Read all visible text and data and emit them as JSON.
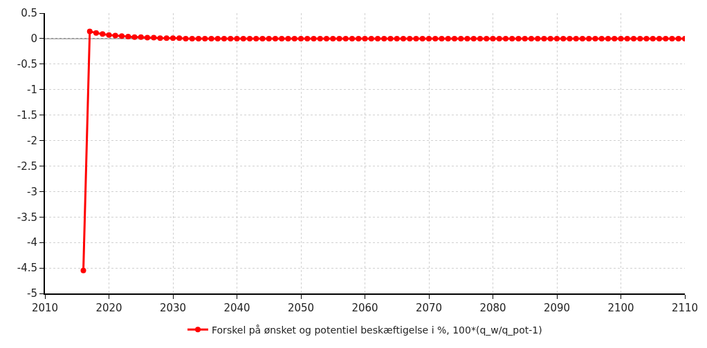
{
  "chart_data": {
    "type": "line",
    "x": [
      2016,
      2017,
      2018,
      2019,
      2020,
      2021,
      2022,
      2023,
      2024,
      2025,
      2026,
      2027,
      2028,
      2029,
      2030,
      2031,
      2032,
      2033,
      2034,
      2035,
      2036,
      2037,
      2038,
      2039,
      2040,
      2041,
      2042,
      2043,
      2044,
      2045,
      2046,
      2047,
      2048,
      2049,
      2050,
      2051,
      2052,
      2053,
      2054,
      2055,
      2056,
      2057,
      2058,
      2059,
      2060,
      2061,
      2062,
      2063,
      2064,
      2065,
      2066,
      2067,
      2068,
      2069,
      2070,
      2071,
      2072,
      2073,
      2074,
      2075,
      2076,
      2077,
      2078,
      2079,
      2080,
      2081,
      2082,
      2083,
      2084,
      2085,
      2086,
      2087,
      2088,
      2089,
      2090,
      2091,
      2092,
      2093,
      2094,
      2095,
      2096,
      2097,
      2098,
      2099,
      2100,
      2101,
      2102,
      2103,
      2104,
      2105,
      2106,
      2107,
      2108,
      2109,
      2110
    ],
    "series": [
      {
        "name": "Forskel på ønsket og potentiel beskæftigelse i %, 100*(q_w/q_pot-1)",
        "color": "#ff0000",
        "values": [
          -4.55,
          0.14,
          0.11,
          0.09,
          0.07,
          0.06,
          0.05,
          0.04,
          0.03,
          0.03,
          0.02,
          0.02,
          0.01,
          0.01,
          0.01,
          0.01,
          0,
          0,
          0,
          0,
          0,
          0,
          0,
          0,
          0,
          0,
          0,
          0,
          0,
          0,
          0,
          0,
          0,
          0,
          0,
          0,
          0,
          0,
          0,
          0,
          0,
          0,
          0,
          0,
          0,
          0,
          0,
          0,
          0,
          0,
          0,
          0,
          0,
          0,
          0,
          0,
          0,
          0,
          0,
          0,
          0,
          0,
          0,
          0,
          0,
          0,
          0,
          0,
          0,
          0,
          0,
          0,
          0,
          0,
          0,
          0,
          0,
          0,
          0,
          0,
          0,
          0,
          0,
          0,
          0,
          0,
          0,
          0,
          0,
          0,
          0,
          0,
          0,
          0,
          0
        ]
      }
    ],
    "xlim": [
      2010,
      2110
    ],
    "xticks": [
      2010,
      2020,
      2030,
      2040,
      2050,
      2060,
      2070,
      2080,
      2090,
      2100,
      2110
    ],
    "ylim": [
      -5,
      0.5
    ],
    "yticks": [
      -5,
      -4.5,
      -4,
      -3.5,
      -3,
      -2.5,
      -2,
      -1.5,
      -1,
      -0.5,
      0,
      0.5
    ],
    "ref_lines": [
      {
        "axis": "y",
        "value": 0,
        "color": "#444444"
      }
    ],
    "grid": true,
    "legend": "bottom",
    "marker": "circle",
    "line_style": "solid"
  }
}
